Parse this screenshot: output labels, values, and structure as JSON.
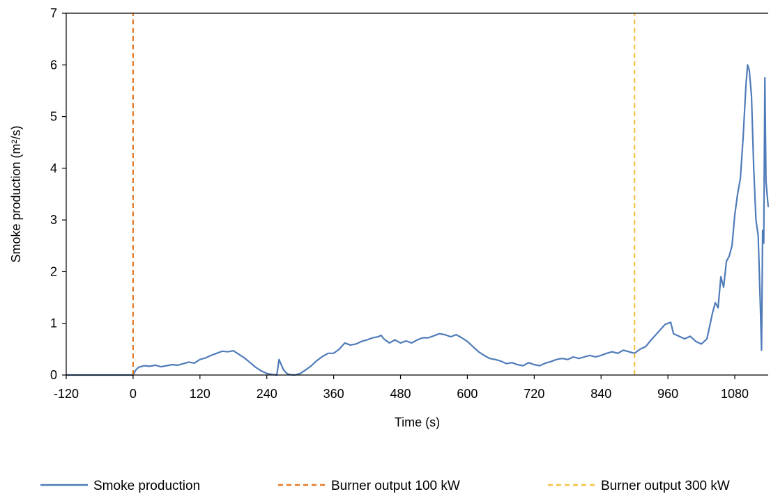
{
  "chart_data": {
    "type": "line",
    "title": "",
    "xlabel": "Time (s)",
    "ylabel": "Smoke production (m²/s)",
    "xlim": [
      -120,
      1140
    ],
    "ylim": [
      0,
      7
    ],
    "xticks": [
      -120,
      0,
      120,
      240,
      360,
      480,
      600,
      720,
      840,
      960,
      1080
    ],
    "yticks": [
      0,
      1,
      2,
      3,
      4,
      5,
      6,
      7
    ],
    "grid": false,
    "legend_position": "bottom",
    "series": [
      {
        "name": "Smoke production",
        "color": "#4F7BB9",
        "style": "solid",
        "x": [
          -120,
          0,
          5,
          10,
          20,
          30,
          40,
          50,
          60,
          70,
          80,
          90,
          100,
          110,
          120,
          130,
          140,
          150,
          160,
          170,
          180,
          190,
          200,
          210,
          220,
          230,
          240,
          250,
          258,
          262,
          266,
          270,
          275,
          280,
          290,
          300,
          310,
          320,
          330,
          340,
          350,
          360,
          370,
          380,
          390,
          400,
          410,
          420,
          430,
          440,
          445,
          450,
          460,
          470,
          480,
          490,
          500,
          510,
          520,
          530,
          540,
          550,
          560,
          570,
          580,
          590,
          600,
          610,
          620,
          630,
          640,
          650,
          660,
          670,
          680,
          690,
          700,
          710,
          720,
          730,
          740,
          750,
          760,
          770,
          780,
          790,
          800,
          810,
          820,
          830,
          840,
          850,
          860,
          870,
          880,
          890,
          900,
          910,
          920,
          930,
          940,
          950,
          955,
          960,
          965,
          970,
          980,
          990,
          1000,
          1010,
          1020,
          1030,
          1040,
          1045,
          1050,
          1055,
          1060,
          1065,
          1070,
          1075,
          1080,
          1085,
          1090,
          1095,
          1100,
          1103,
          1106,
          1110,
          1114,
          1118,
          1122,
          1126,
          1128,
          1130,
          1132,
          1134,
          1136,
          1138,
          1140
        ],
        "y": [
          0,
          0,
          0.1,
          0.15,
          0.18,
          0.17,
          0.19,
          0.16,
          0.18,
          0.2,
          0.19,
          0.22,
          0.25,
          0.23,
          0.3,
          0.33,
          0.38,
          0.42,
          0.46,
          0.45,
          0.47,
          0.4,
          0.33,
          0.24,
          0.15,
          0.08,
          0.03,
          0.01,
          0.0,
          0.3,
          0.2,
          0.1,
          0.04,
          0.01,
          0.0,
          0.03,
          0.1,
          0.18,
          0.28,
          0.36,
          0.42,
          0.42,
          0.5,
          0.62,
          0.58,
          0.6,
          0.65,
          0.68,
          0.72,
          0.74,
          0.77,
          0.7,
          0.62,
          0.68,
          0.62,
          0.66,
          0.62,
          0.68,
          0.72,
          0.72,
          0.76,
          0.8,
          0.78,
          0.74,
          0.78,
          0.72,
          0.65,
          0.55,
          0.45,
          0.38,
          0.32,
          0.3,
          0.27,
          0.22,
          0.24,
          0.2,
          0.18,
          0.24,
          0.2,
          0.18,
          0.23,
          0.26,
          0.3,
          0.32,
          0.3,
          0.35,
          0.32,
          0.35,
          0.38,
          0.35,
          0.38,
          0.42,
          0.45,
          0.42,
          0.48,
          0.45,
          0.42,
          0.5,
          0.55,
          0.68,
          0.8,
          0.92,
          0.98,
          1.0,
          1.02,
          0.8,
          0.75,
          0.7,
          0.75,
          0.65,
          0.6,
          0.7,
          1.2,
          1.4,
          1.3,
          1.9,
          1.7,
          2.2,
          2.3,
          2.5,
          3.1,
          3.5,
          3.8,
          4.6,
          5.6,
          6.0,
          5.9,
          5.4,
          4.0,
          3.0,
          2.7,
          1.3,
          0.48,
          2.8,
          2.55,
          5.75,
          3.75,
          3.5,
          3.25
        ]
      },
      {
        "name": "Burner output 100 kW",
        "color": "#E07B2A",
        "style": "dashed",
        "x": [
          0,
          0
        ],
        "y": [
          0,
          7
        ]
      },
      {
        "name": "Burner output 300 kW",
        "color": "#F5C242",
        "style": "dashed",
        "x": [
          900,
          900
        ],
        "y": [
          0,
          7
        ]
      }
    ]
  }
}
